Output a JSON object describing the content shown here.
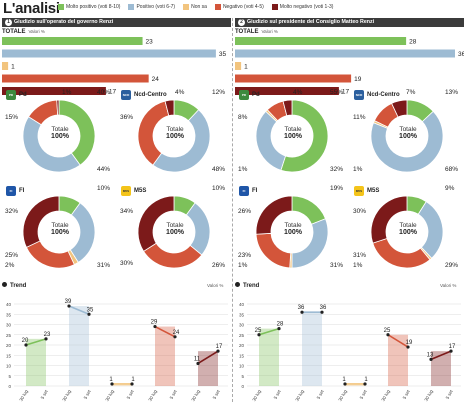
{
  "title": "L'analisi",
  "legend": [
    {
      "label": "Molto positivo (voti 8-10)",
      "color": "#7dc15a"
    },
    {
      "label": "Positivo (voti 6-7)",
      "color": "#9dbbd3"
    },
    {
      "label": "Non sa",
      "color": "#f2c47e"
    },
    {
      "label": "Negativo (voti 4-5)",
      "color": "#d3553a"
    },
    {
      "label": "Molto negativo (voti 1-3)",
      "color": "#7c1a1a"
    }
  ],
  "colors": {
    "molto_positivo": "#7dc15a",
    "positivo": "#9dbbd3",
    "non_sa": "#f2c47e",
    "negativo": "#d3553a",
    "molto_negativo": "#7c1a1a"
  },
  "panels": [
    {
      "number": "1",
      "header": "Giudizio sull'operato del governo Renzi",
      "totale_label": "TOTALE",
      "valori_label": "Valori %",
      "totale_text": "Totale",
      "totale_pct": "100%",
      "bar_labels": [
        "23",
        "35",
        "1",
        "24",
        "17"
      ],
      "donut_labels": [
        {
          "top_left": "1%",
          "top_right": "40%",
          "left": "15%",
          "bottom_right": "44%"
        },
        {
          "top_left": "4%",
          "top_right": "12%",
          "left": "36%",
          "bottom_right": "48%"
        },
        {
          "top_right": "10%",
          "left": "32%",
          "bottom_left_a": "25%",
          "bottom_left_b": "2%",
          "bottom_right": "31%"
        },
        {
          "top_right": "10%",
          "left": "34%",
          "bottom_left_a": "30%",
          "bottom_right": "26%"
        }
      ],
      "trend_title": "Trend",
      "trend_valori": "Valori %",
      "trend_point_labels": [
        [
          "20",
          "23"
        ],
        [
          "39",
          "35"
        ],
        [
          "1",
          "1"
        ],
        [
          "29",
          "24"
        ],
        [
          "11",
          "17"
        ]
      ]
    },
    {
      "number": "2",
      "header": "Giudizio sul presidente del Consiglio Matteo Renzi",
      "totale_label": "TOTALE",
      "valori_label": "Valori %",
      "totale_text": "Totale",
      "totale_pct": "100%",
      "bar_labels": [
        "28",
        "36",
        "1",
        "19",
        "17"
      ],
      "donut_labels": [
        {
          "top_left": "4%",
          "top_right": "55%",
          "left": "8%",
          "bottom_left_a": "1%",
          "bottom_right": "32%"
        },
        {
          "top_left": "7%",
          "top_right": "13%",
          "left": "11%",
          "bottom_left_a": "1%",
          "bottom_right": "68%"
        },
        {
          "top_right": "19%",
          "left": "26%",
          "bottom_left_a": "23%",
          "bottom_left_b": "1%",
          "bottom_right": "31%"
        },
        {
          "top_right": "9%",
          "left": "30%",
          "bottom_left_a": "31%",
          "bottom_left_b": "1%",
          "bottom_right": "29%"
        }
      ],
      "trend_title": "Trend",
      "trend_valori": "Valori %",
      "trend_point_labels": [
        [
          "25",
          "28"
        ],
        [
          "36",
          "36"
        ],
        [
          "1",
          "1"
        ],
        [
          "25",
          "19"
        ],
        [
          "13",
          "17"
        ]
      ]
    }
  ],
  "party_names": [
    "Pd",
    "Ncd-Centro",
    "FI",
    "M5S"
  ],
  "party_logos": [
    "PD",
    "NCD",
    "FI",
    "M5S"
  ],
  "trend_dates": [
    "30 lug",
    "5 set"
  ],
  "trend_y_ticks": [
    "0",
    "5",
    "10",
    "15",
    "20",
    "25",
    "30",
    "35",
    "40"
  ],
  "chart_data": [
    {
      "type": "bar",
      "title": "Giudizio sull'operato del governo Renzi - TOTALE",
      "ylabel": "Valori %",
      "categories": [
        "Molto positivo (voti 8-10)",
        "Positivo (voti 6-7)",
        "Non sa",
        "Negativo (voti 4-5)",
        "Molto negativo (voti 1-3)"
      ],
      "values": [
        23,
        35,
        1,
        24,
        17
      ],
      "xlim": [
        0,
        36
      ]
    },
    {
      "type": "pie",
      "title": "Pd",
      "categories": [
        "Molto positivo (voti 8-10)",
        "Positivo (voti 6-7)",
        "Negativo (voti 4-5)",
        "Molto negativo (voti 1-3)"
      ],
      "values": [
        40,
        44,
        15,
        1
      ]
    },
    {
      "type": "pie",
      "title": "Ncd-Centro",
      "categories": [
        "Molto positivo (voti 8-10)",
        "Positivo (voti 6-7)",
        "Negativo (voti 4-5)",
        "Molto negativo (voti 1-3)"
      ],
      "values": [
        12,
        48,
        36,
        4
      ]
    },
    {
      "type": "pie",
      "title": "FI",
      "categories": [
        "Molto positivo (voti 8-10)",
        "Positivo (voti 6-7)",
        "Non sa",
        "Negativo (voti 4-5)",
        "Molto negativo (voti 1-3)"
      ],
      "values": [
        10,
        31,
        2,
        25,
        32
      ]
    },
    {
      "type": "pie",
      "title": "M5S",
      "categories": [
        "Molto positivo (voti 8-10)",
        "Positivo (voti 6-7)",
        "Negativo (voti 4-5)",
        "Molto negativo (voti 1-3)"
      ],
      "values": [
        10,
        26,
        30,
        34
      ]
    },
    {
      "type": "line",
      "title": "Trend",
      "ylabel": "Valori %",
      "categories": [
        "30 lug",
        "5 set"
      ],
      "series": [
        {
          "name": "Molto positivo (voti 8-10)",
          "values": [
            20,
            23
          ]
        },
        {
          "name": "Positivo (voti 6-7)",
          "values": [
            39,
            35
          ]
        },
        {
          "name": "Non sa",
          "values": [
            1,
            1
          ]
        },
        {
          "name": "Negativo (voti 4-5)",
          "values": [
            29,
            24
          ]
        },
        {
          "name": "Molto negativo (voti 1-3)",
          "values": [
            11,
            17
          ]
        }
      ],
      "ylim": [
        0,
        40
      ]
    },
    {
      "type": "bar",
      "title": "Giudizio sul presidente del Consiglio Matteo Renzi - TOTALE",
      "ylabel": "Valori %",
      "categories": [
        "Molto positivo (voti 8-10)",
        "Positivo (voti 6-7)",
        "Non sa",
        "Negativo (voti 4-5)",
        "Molto negativo (voti 1-3)"
      ],
      "values": [
        28,
        36,
        1,
        19,
        17
      ],
      "xlim": [
        0,
        36
      ]
    },
    {
      "type": "pie",
      "title": "Pd",
      "categories": [
        "Molto positivo (voti 8-10)",
        "Positivo (voti 6-7)",
        "Non sa",
        "Negativo (voti 4-5)",
        "Molto negativo (voti 1-3)"
      ],
      "values": [
        55,
        32,
        1,
        8,
        4
      ]
    },
    {
      "type": "pie",
      "title": "Ncd-Centro",
      "categories": [
        "Molto positivo (voti 8-10)",
        "Positivo (voti 6-7)",
        "Non sa",
        "Negativo (voti 4-5)",
        "Molto negativo (voti 1-3)"
      ],
      "values": [
        13,
        68,
        1,
        11,
        7
      ]
    },
    {
      "type": "pie",
      "title": "FI",
      "categories": [
        "Molto positivo (voti 8-10)",
        "Positivo (voti 6-7)",
        "Non sa",
        "Negativo (voti 4-5)",
        "Molto negativo (voti 1-3)"
      ],
      "values": [
        19,
        31,
        1,
        23,
        26
      ]
    },
    {
      "type": "pie",
      "title": "M5S",
      "categories": [
        "Molto positivo (voti 8-10)",
        "Positivo (voti 6-7)",
        "Non sa",
        "Negativo (voti 4-5)",
        "Molto negativo (voti 1-3)"
      ],
      "values": [
        9,
        29,
        1,
        31,
        30
      ]
    },
    {
      "type": "line",
      "title": "Trend",
      "ylabel": "Valori %",
      "categories": [
        "30 lug",
        "5 set"
      ],
      "series": [
        {
          "name": "Molto positivo (voti 8-10)",
          "values": [
            25,
            28
          ]
        },
        {
          "name": "Positivo (voti 6-7)",
          "values": [
            36,
            36
          ]
        },
        {
          "name": "Non sa",
          "values": [
            1,
            1
          ]
        },
        {
          "name": "Negativo (voti 4-5)",
          "values": [
            25,
            19
          ]
        },
        {
          "name": "Molto negativo (voti 1-3)",
          "values": [
            13,
            17
          ]
        }
      ],
      "ylim": [
        0,
        40
      ]
    }
  ]
}
